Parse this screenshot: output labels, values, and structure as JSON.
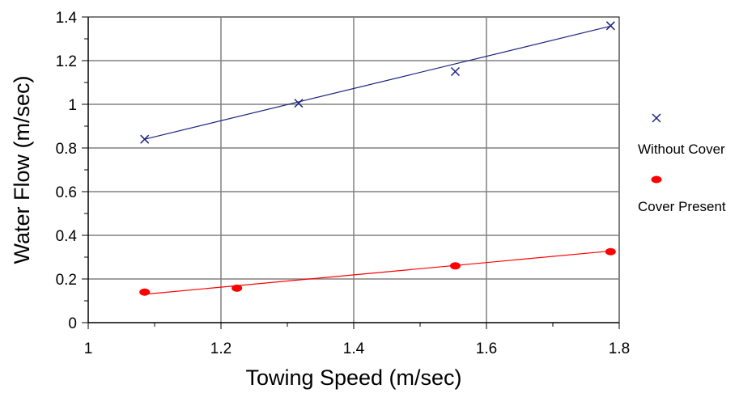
{
  "chart_data": {
    "type": "scatter",
    "title": "",
    "xlabel": "Towing Speed (m/sec)",
    "ylabel": "Water Flow (m/sec)",
    "xlim": [
      1,
      1.8
    ],
    "ylim": [
      0,
      1.4
    ],
    "x_ticks": [
      "1",
      "1.2",
      "1.4",
      "1.6",
      "1.8"
    ],
    "y_ticks": [
      "0",
      "0.2",
      "0.4",
      "0.6",
      "0.8",
      "1",
      "1.2",
      "1.4"
    ],
    "grid": true,
    "legend_position": "right",
    "series": [
      {
        "name": "Without Cover",
        "marker": "x",
        "color": "#1a237e",
        "points": [
          [
            1.085,
            0.84
          ],
          [
            1.317,
            1.005
          ],
          [
            1.553,
            1.15
          ],
          [
            1.787,
            1.36
          ]
        ],
        "trendline": [
          [
            1.085,
            0.84
          ],
          [
            1.787,
            1.358
          ]
        ]
      },
      {
        "name": "Cover Present",
        "marker": "dot",
        "color": "#ff0000",
        "points": [
          [
            1.085,
            0.14
          ],
          [
            1.224,
            0.158
          ],
          [
            1.553,
            0.26
          ],
          [
            1.787,
            0.325
          ]
        ],
        "trendline": [
          [
            1.085,
            0.13
          ],
          [
            1.787,
            0.328
          ]
        ]
      }
    ]
  }
}
